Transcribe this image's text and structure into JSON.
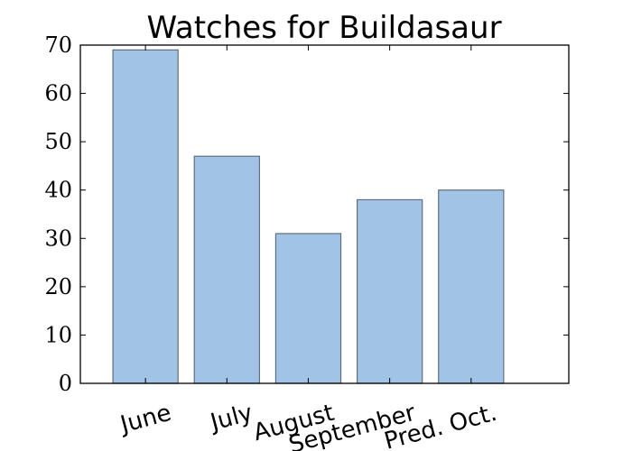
{
  "chart_data": {
    "type": "bar",
    "title": "Watches for Buildasaur",
    "xlabel": "",
    "ylabel": "",
    "categories": [
      "June",
      "July",
      "August",
      "September",
      "Pred. Oct."
    ],
    "values": [
      69,
      47,
      31,
      38,
      40
    ],
    "ylim": [
      0,
      70
    ],
    "yticks": [
      "0",
      "10",
      "20",
      "30",
      "40",
      "50",
      "60",
      "70"
    ],
    "grid": false,
    "legend": "none",
    "colors": {
      "bar_fill": "#a1c3e5",
      "bar_edge": "#5f6f7f",
      "axis": "#000000"
    }
  }
}
